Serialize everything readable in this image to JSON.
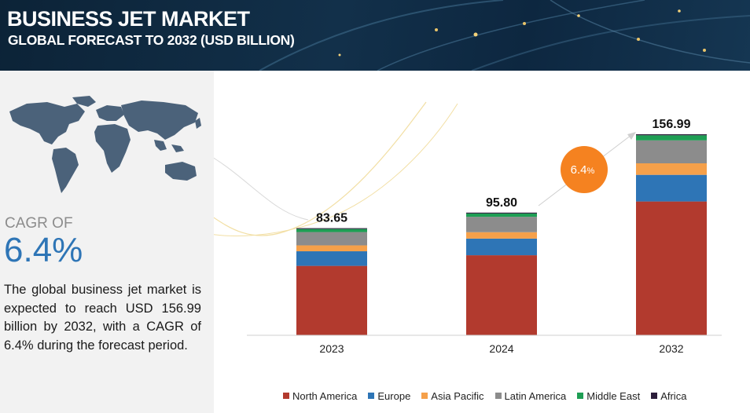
{
  "header": {
    "title": "BUSINESS JET MARKET",
    "subtitle": "GLOBAL FORECAST TO 2032 (USD BILLION)"
  },
  "left_panel": {
    "cagr_label": "CAGR OF",
    "cagr_value": "6.4%",
    "description": "The global business jet market is expected to reach USD 156.99 billion by 2032, with a CAGR of 6.4% during the forecast period."
  },
  "colors": {
    "North America": "#b23a2e",
    "Europe": "#2e75b6",
    "Asia Pacific": "#f5a04a",
    "Latin America": "#8c8c8c",
    "Middle East": "#1e9e54",
    "Africa": "#2b1d3a",
    "cagr_bubble": "#f58220"
  },
  "chart_data": {
    "type": "bar",
    "stacked": true,
    "title": "BUSINESS JET MARKET",
    "subtitle": "GLOBAL FORECAST TO 2032 (USD BILLION)",
    "categories": [
      "2023",
      "2024",
      "2032"
    ],
    "totals": [
      83.65,
      95.8,
      156.99
    ],
    "total_labels": [
      "83.65",
      "95.80",
      "156.99"
    ],
    "series": [
      {
        "name": "North America",
        "values": [
          54.2,
          62.5,
          104.5
        ]
      },
      {
        "name": "Europe",
        "values": [
          11.4,
          13.0,
          20.8
        ]
      },
      {
        "name": "Asia Pacific",
        "values": [
          4.6,
          5.0,
          9.0
        ]
      },
      {
        "name": "Latin America",
        "values": [
          10.4,
          12.0,
          17.9
        ]
      },
      {
        "name": "Middle East",
        "values": [
          2.4,
          2.6,
          4.0
        ]
      },
      {
        "name": "Africa",
        "values": [
          0.65,
          0.7,
          0.79
        ]
      }
    ],
    "cagr_annotation": {
      "text": "6.4",
      "suffix": "%"
    },
    "legend_position": "bottom",
    "grid": false
  }
}
